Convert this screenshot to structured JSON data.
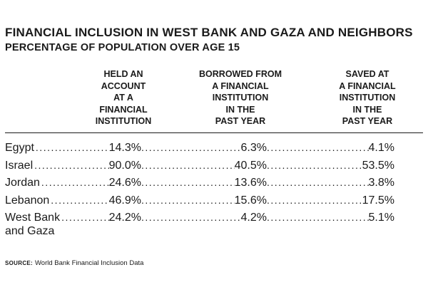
{
  "chart_data": {
    "type": "table",
    "title": "FINANCIAL INCLUSION IN WEST BANK AND GAZA AND NEIGHBORS",
    "subtitle": "PERCENTAGE OF POPULATION OVER AGE 15",
    "columns": [
      "HELD AN\nACCOUNT\nAT A\nFINANCIAL\nINSTITUTION",
      "BORROWED FROM\nA FINANCIAL\nINSTITUTION\nIN THE\nPAST YEAR",
      "SAVED AT\nA FINANCIAL\nINSTITUTION\nIN THE\nPAST YEAR"
    ],
    "rows": [
      {
        "name": "Egypt",
        "name_line2": "",
        "values": [
          "14.3%",
          "6.3%",
          "4.1%"
        ]
      },
      {
        "name": "Israel",
        "name_line2": "",
        "values": [
          "90.0%",
          "40.5%",
          "53.5%"
        ]
      },
      {
        "name": "Jordan",
        "name_line2": "",
        "values": [
          "24.6%",
          "13.6%",
          "3.8%"
        ]
      },
      {
        "name": "Lebanon",
        "name_line2": "",
        "values": [
          "46.9%",
          "15.6%",
          "17.5%"
        ]
      },
      {
        "name": "West Bank",
        "name_line2": "and Gaza",
        "values": [
          "24.2%",
          "4.2%",
          "5.1%"
        ]
      }
    ],
    "source_label": "SOURCE:",
    "source_text": "World Bank Financial Inclusion Data"
  }
}
